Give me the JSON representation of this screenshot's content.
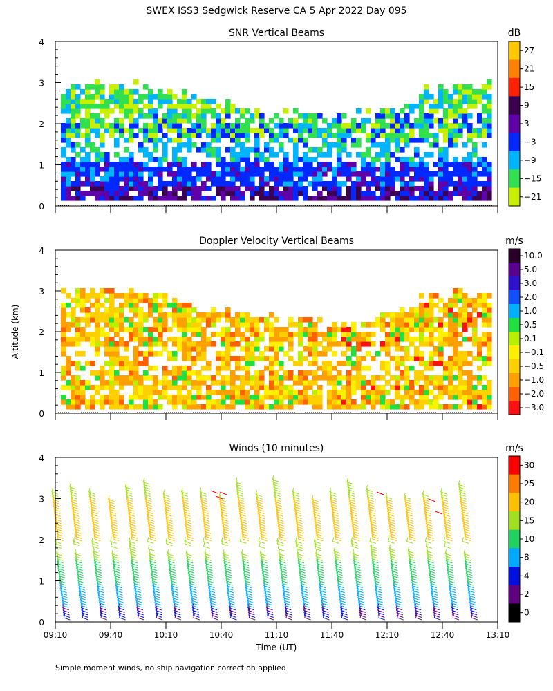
{
  "page": {
    "title": "SWEX ISS3 Sedgwick Reserve CA   5 Apr 2022 Day 095",
    "y_axis_label": "Altitude (km)",
    "x_axis_label": "Time (UT)",
    "footnote": "Simple moment winds, no ship navigation correction applied"
  },
  "chart_data": [
    {
      "type": "heatmap",
      "title": "SNR Vertical Beams",
      "xlabel": "",
      "ylabel": "Altitude (km)",
      "xlim": [
        "09:10",
        "13:10"
      ],
      "ylim": [
        0,
        4
      ],
      "ytick_labels": [
        "0",
        "1",
        "2",
        "3",
        "4"
      ],
      "colorbar": {
        "unit": "dB",
        "ticks": [
          "27",
          "21",
          "15",
          "9",
          "3",
          "−3",
          "−9",
          "−15",
          "−21"
        ],
        "colors": [
          "#ffc800",
          "#ff8000",
          "#ff2000",
          "#3c0050",
          "#6000a8",
          "#0028ff",
          "#00b4ff",
          "#30e050",
          "#c8f000"
        ]
      }
    },
    {
      "type": "heatmap",
      "title": "Doppler Velocity Vertical Beams",
      "xlabel": "",
      "ylabel": "Altitude (km)",
      "xlim": [
        "09:10",
        "13:10"
      ],
      "ylim": [
        0,
        4
      ],
      "ytick_labels": [
        "0",
        "1",
        "2",
        "3",
        "4"
      ],
      "colorbar": {
        "unit": "m/s",
        "ticks": [
          "10.0",
          "5.0",
          "3.0",
          "2.0",
          "1.0",
          "0.5",
          "0.1",
          "−0.1",
          "−0.5",
          "−1.0",
          "−2.0",
          "−3.0"
        ],
        "colors": [
          "#280028",
          "#5a0090",
          "#3010d0",
          "#1050ff",
          "#00b0ff",
          "#20e040",
          "#b8f000",
          "#fff000",
          "#ffd000",
          "#ffa000",
          "#ff6000",
          "#ff1010"
        ]
      }
    },
    {
      "type": "scatter",
      "title": "Winds (10 minutes)",
      "xlabel": "Time (UT)",
      "ylabel": "Altitude (km)",
      "xlim": [
        "09:10",
        "13:10"
      ],
      "ylim": [
        0,
        4
      ],
      "xtick_labels": [
        "09:10",
        "09:40",
        "10:10",
        "10:40",
        "11:10",
        "11:40",
        "12:10",
        "12:40",
        "13:10"
      ],
      "ytick_labels": [
        "0",
        "1",
        "2",
        "3",
        "4"
      ],
      "colorbar": {
        "unit": "m/s",
        "ticks": [
          "30",
          "25",
          "20",
          "15",
          "10",
          "8",
          "4",
          "2",
          "0"
        ],
        "colors": [
          "#ff0000",
          "#ff7a00",
          "#ffc000",
          "#a0e020",
          "#20d060",
          "#00a8ff",
          "#0010e0",
          "#600080",
          "#000000"
        ]
      }
    }
  ]
}
